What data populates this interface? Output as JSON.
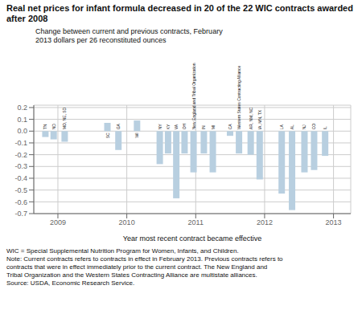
{
  "chart_data": {
    "type": "bar",
    "title": "Real net prices for infant formula decreased in 20 of the 22 WIC contracts awarded after 2008",
    "ylabel": "Change between current and previous contracts, February 2013 dollars per 26 reconstituted ounces",
    "xlabel": "Year most recent contract became effective",
    "categories": [
      "TN",
      "ND",
      "MO, NE, SD",
      "SC",
      "GA",
      "WI",
      "NY",
      "KY",
      "VA",
      "OH",
      "New England and Tribal Organization",
      "IN",
      "MI",
      "CA",
      "Western States Contracting Alliance",
      "AR, NM, NC",
      "IA, MN, TX",
      "LA",
      "AL",
      "NJ",
      "CO",
      "IL"
    ],
    "x": [
      2008.82,
      2008.94,
      2009.1,
      2009.72,
      2009.88,
      2010.15,
      2010.48,
      2010.6,
      2010.72,
      2010.84,
      2010.97,
      2011.12,
      2011.25,
      2011.5,
      2011.63,
      2011.8,
      2011.93,
      2012.25,
      2012.4,
      2012.58,
      2012.72,
      2012.88
    ],
    "values": [
      -0.05,
      -0.07,
      -0.09,
      0.07,
      -0.16,
      0.09,
      -0.28,
      -0.19,
      -0.57,
      -0.19,
      -0.35,
      -0.19,
      -0.35,
      -0.04,
      -0.19,
      -0.2,
      -0.41,
      -0.53,
      -0.67,
      -0.35,
      -0.33,
      -0.21
    ],
    "color": "#b8cfe0",
    "xlim": [
      2008.65,
      2013.25
    ],
    "xticks": [
      2009,
      2010,
      2011,
      2012,
      2013
    ],
    "ylim": [
      -0.7,
      0.22
    ],
    "yticks": [
      -0.7,
      -0.6,
      -0.5,
      -0.4,
      -0.3,
      -0.2,
      -0.1,
      {
        "value": 0,
        "label": "0.0"
      },
      0.1,
      0.2
    ],
    "grid": true,
    "annotations": [
      "WIC = Special Supplemental Nutrition Program for Women, Infants, and Children.",
      "Note: Current contracts refers to contracts in effect in February 2013. Previous contracts refers to",
      "contracts that were in effect immediately prior to the current contract. The New England and",
      "Tribal Organization and the Western States Contracting Alliance are multistate alliances.",
      "Source: USDA, Economic Research Service."
    ]
  }
}
